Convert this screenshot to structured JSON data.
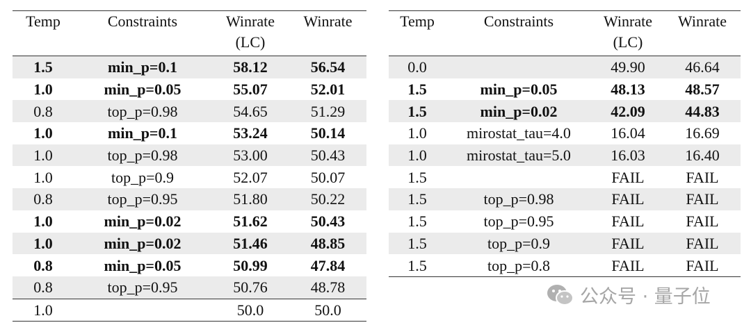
{
  "tables": [
    {
      "header": [
        "Temp",
        "Constraints",
        "Winrate (LC)",
        "Winrate"
      ],
      "rows": [
        {
          "cells": [
            "1.5",
            "min_p=0.1",
            "58.12",
            "56.54"
          ],
          "bold": true
        },
        {
          "cells": [
            "1.0",
            "min_p=0.05",
            "55.07",
            "52.01"
          ],
          "bold": true
        },
        {
          "cells": [
            "0.8",
            "top_p=0.98",
            "54.65",
            "51.29"
          ],
          "bold": false
        },
        {
          "cells": [
            "1.0",
            "min_p=0.1",
            "53.24",
            "50.14"
          ],
          "bold": true
        },
        {
          "cells": [
            "1.0",
            "top_p=0.98",
            "53.00",
            "50.43"
          ],
          "bold": false
        },
        {
          "cells": [
            "1.0",
            "top_p=0.9",
            "52.07",
            "50.07"
          ],
          "bold": false
        },
        {
          "cells": [
            "0.8",
            "top_p=0.95",
            "51.80",
            "50.22"
          ],
          "bold": false
        },
        {
          "cells": [
            "1.0",
            "min_p=0.02",
            "51.62",
            "50.43"
          ],
          "bold": true
        },
        {
          "cells": [
            "1.0",
            "min_p=0.02",
            "51.46",
            "48.85"
          ],
          "bold": true
        },
        {
          "cells": [
            "0.8",
            "min_p=0.05",
            "50.99",
            "47.84"
          ],
          "bold": true
        },
        {
          "cells": [
            "0.8",
            "top_p=0.95",
            "50.76",
            "48.78"
          ],
          "bold": false
        },
        {
          "cells": [
            "1.0",
            null,
            "50.0",
            "50.0"
          ],
          "bold": false
        }
      ]
    },
    {
      "header": [
        "Temp",
        "Constraints",
        "Winrate (LC)",
        "Winrate"
      ],
      "rows": [
        {
          "cells": [
            "0.0",
            null,
            "49.90",
            "46.64"
          ],
          "bold": false
        },
        {
          "cells": [
            "1.5",
            "min_p=0.05",
            "48.13",
            "48.57"
          ],
          "bold": true
        },
        {
          "cells": [
            "1.5",
            "min_p=0.02",
            "42.09",
            "44.83"
          ],
          "bold": true
        },
        {
          "cells": [
            "1.0",
            "mirostat_tau=4.0",
            "16.04",
            "16.69"
          ],
          "bold": false
        },
        {
          "cells": [
            "1.0",
            "mirostat_tau=5.0",
            "16.03",
            "16.40"
          ],
          "bold": false
        },
        {
          "cells": [
            "1.5",
            null,
            "FAIL",
            "FAIL"
          ],
          "bold": false
        },
        {
          "cells": [
            "1.5",
            "top_p=0.98",
            "FAIL",
            "FAIL"
          ],
          "bold": false
        },
        {
          "cells": [
            "1.5",
            "top_p=0.95",
            "FAIL",
            "FAIL"
          ],
          "bold": false
        },
        {
          "cells": [
            "1.5",
            "top_p=0.9",
            "FAIL",
            "FAIL"
          ],
          "bold": false
        },
        {
          "cells": [
            "1.5",
            "top_p=0.8",
            "FAIL",
            "FAIL"
          ],
          "bold": false
        }
      ]
    }
  ],
  "watermark": "公众号 · 量子位"
}
